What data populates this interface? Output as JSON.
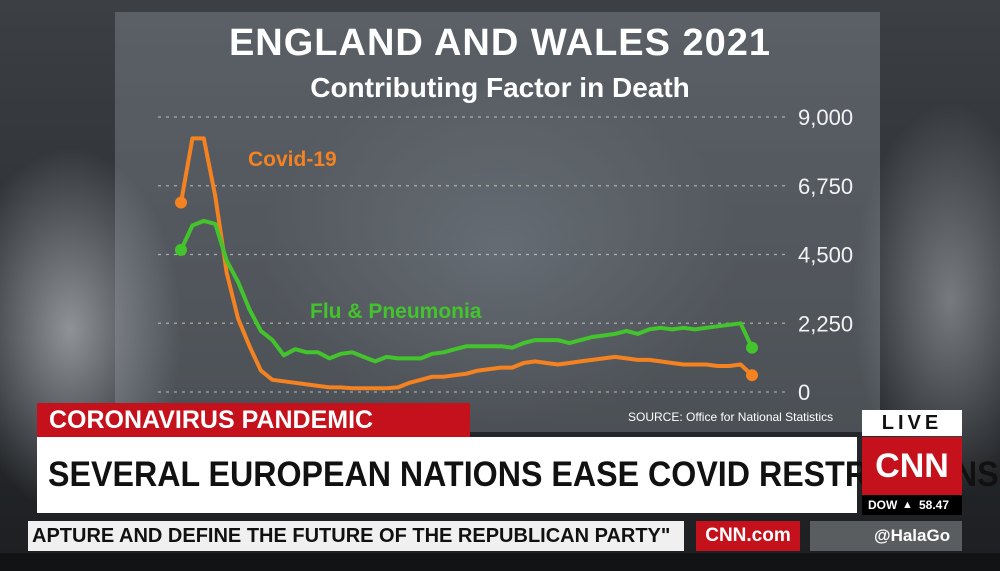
{
  "chart_data": {
    "type": "line",
    "title": "ENGLAND AND WALES 2021",
    "subtitle": "Contributing Factor in Death",
    "ylim": [
      0,
      9000
    ],
    "y_ticks": [
      "9,000",
      "6,750",
      "4,500",
      "2,250",
      "0"
    ],
    "y_tick_values": [
      9000,
      6750,
      4500,
      2250,
      0
    ],
    "grid": "horizontal dashed",
    "x": [
      1,
      2,
      3,
      4,
      5,
      6,
      7,
      8,
      9,
      10,
      11,
      12,
      13,
      14,
      15,
      16,
      17,
      18,
      19,
      20,
      21,
      22,
      23,
      24,
      25,
      26,
      27,
      28,
      29,
      30,
      31,
      32,
      33,
      34,
      35,
      36,
      37,
      38,
      39,
      40,
      41,
      42,
      43,
      44,
      45,
      46,
      47,
      48,
      49,
      50,
      51
    ],
    "series": [
      {
        "name": "Covid-19",
        "color": "#f58220",
        "values": [
          6200,
          8300,
          8300,
          6400,
          3900,
          2400,
          1500,
          700,
          400,
          350,
          300,
          250,
          200,
          150,
          150,
          120,
          120,
          120,
          120,
          150,
          300,
          400,
          500,
          500,
          550,
          600,
          700,
          750,
          800,
          800,
          950,
          1000,
          950,
          900,
          950,
          1000,
          1050,
          1100,
          1150,
          1100,
          1050,
          1050,
          1000,
          950,
          900,
          900,
          900,
          850,
          850,
          900,
          550
        ]
      },
      {
        "name": "Flu & Pneumonia",
        "color": "#43c42d",
        "values": [
          4650,
          5450,
          5600,
          5500,
          4300,
          3600,
          2700,
          2000,
          1700,
          1200,
          1400,
          1300,
          1300,
          1100,
          1250,
          1300,
          1150,
          1000,
          1150,
          1100,
          1100,
          1100,
          1250,
          1300,
          1400,
          1500,
          1500,
          1500,
          1500,
          1450,
          1600,
          1700,
          1700,
          1700,
          1600,
          1700,
          1800,
          1850,
          1900,
          2000,
          1900,
          2050,
          2100,
          2050,
          2100,
          2050,
          2100,
          2150,
          2200,
          2250,
          1450
        ]
      }
    ],
    "source": "SOURCE: Office for National Statistics"
  },
  "banner": {
    "topic": "CORONAVIRUS PANDEMIC",
    "headline": "SEVERAL EUROPEAN NATIONS EASE COVID RESTRICTIONS",
    "live": "LIVE",
    "logo": "CNN",
    "dow_label": "DOW",
    "dow_arrow": "▲",
    "dow_value": "58.47",
    "ticker": "APTURE AND DEFINE THE FUTURE OF THE REPUBLICAN PARTY\"",
    "site": "CNN.com",
    "handle": "@HalaGo"
  },
  "colors": {
    "red": "#c5111b",
    "covid": "#f58220",
    "flu": "#43c42d"
  }
}
